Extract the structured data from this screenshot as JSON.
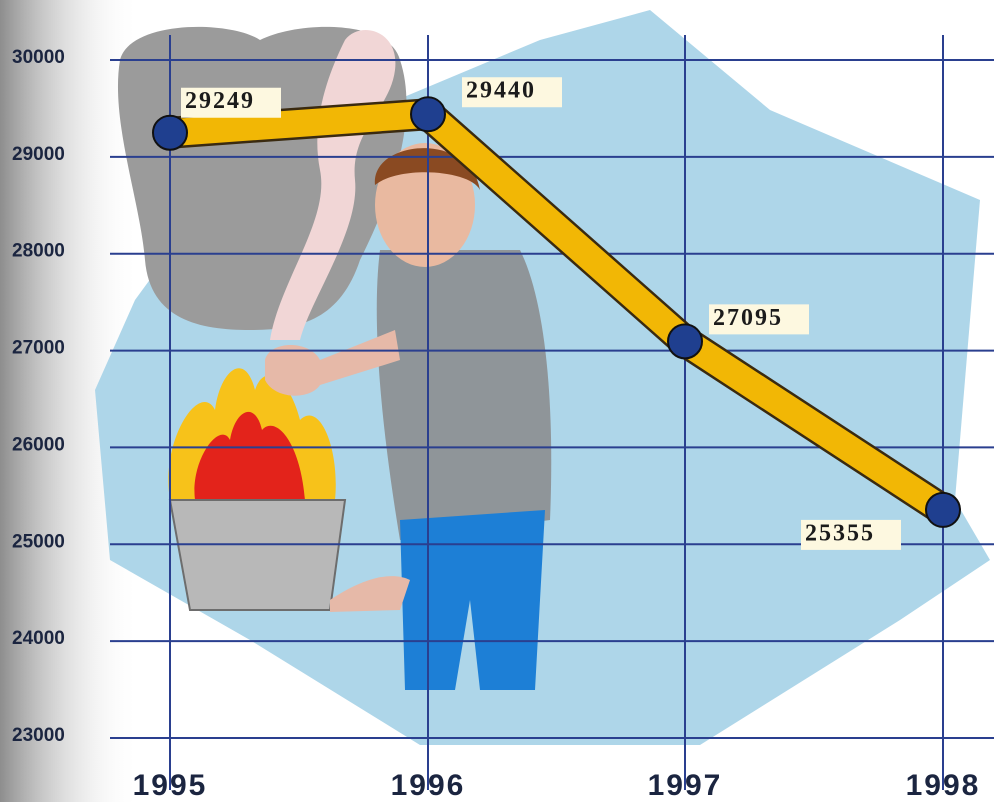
{
  "chart_data": {
    "type": "line",
    "categories": [
      "1995",
      "1996",
      "1997",
      "1998"
    ],
    "values": [
      29249,
      29440,
      27095,
      25355
    ],
    "color": "#f2b705",
    "marker_color": "#1f3f8f",
    "ylim": [
      23000,
      30000
    ],
    "yticks": [
      23000,
      24000,
      25000,
      26000,
      27000,
      28000,
      29000,
      30000
    ],
    "grid": true
  }
}
